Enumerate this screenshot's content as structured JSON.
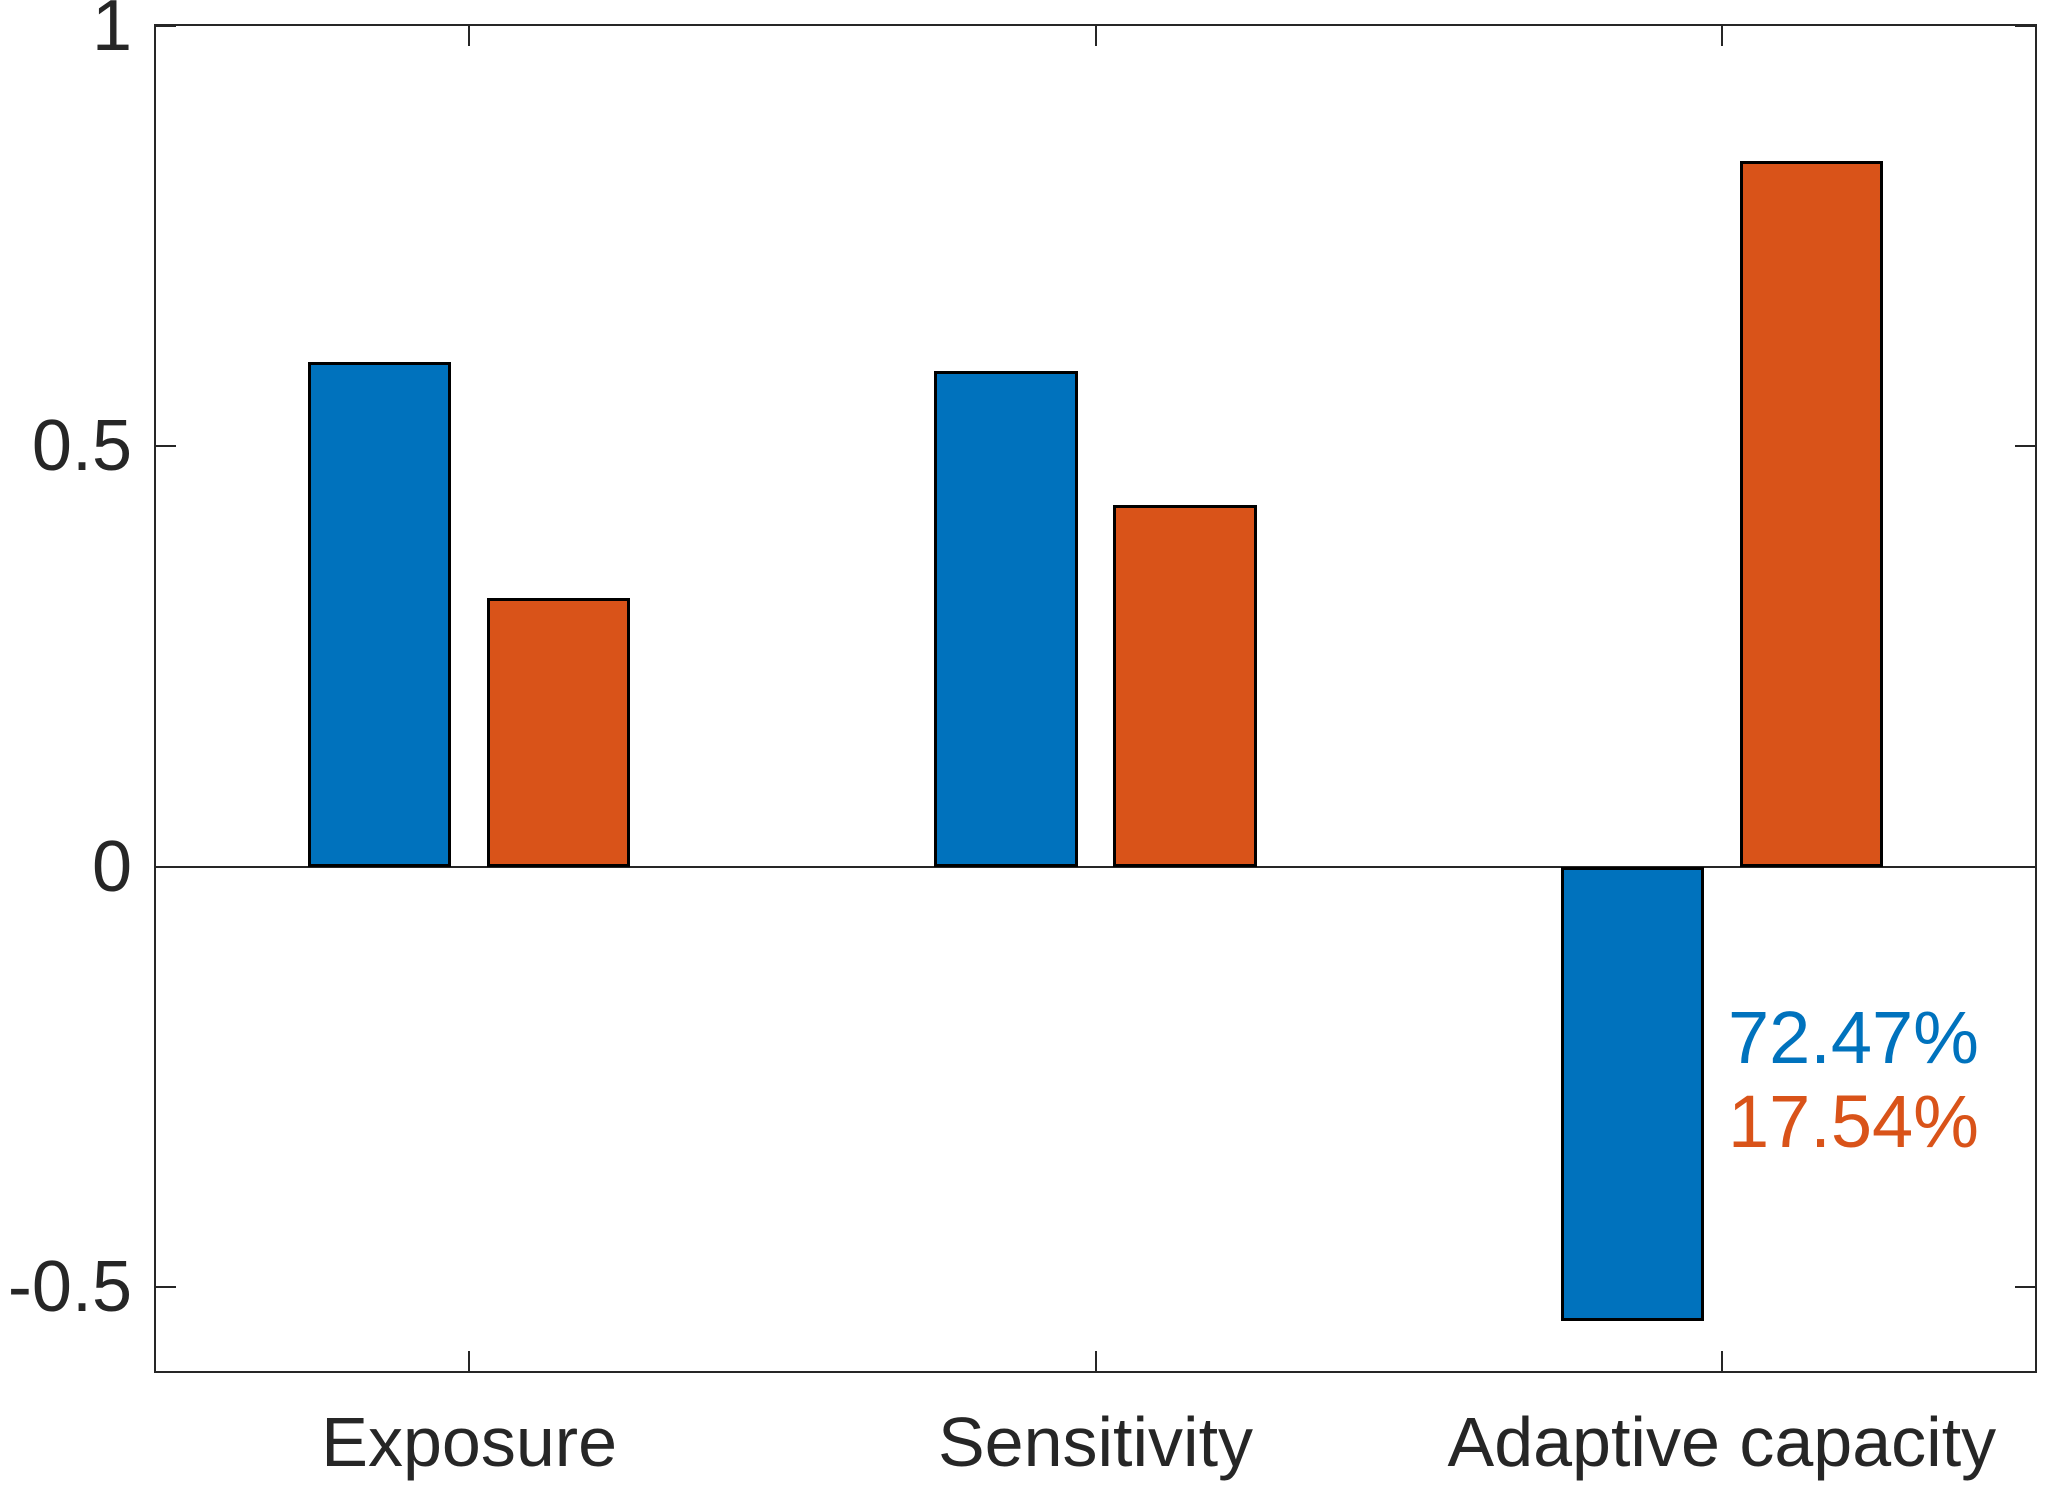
{
  "chart_data": {
    "type": "bar",
    "title": "",
    "xlabel": "",
    "ylabel": "",
    "categories": [
      "Exposure",
      "Sensitivity",
      "Adaptive capacity"
    ],
    "series": [
      {
        "name": "blue-series",
        "color": "#0072BD",
        "values": [
          0.6,
          0.59,
          -0.54
        ]
      },
      {
        "name": "orange-series",
        "color": "#D95319",
        "values": [
          0.32,
          0.43,
          0.84
        ]
      }
    ],
    "ylim": [
      -0.6,
      1
    ],
    "yticks": [
      {
        "value": 1,
        "label": "1"
      },
      {
        "value": 0.5,
        "label": "0.5"
      },
      {
        "value": 0,
        "label": "0"
      },
      {
        "value": -0.5,
        "label": "-0.5"
      }
    ],
    "baseline": 0,
    "bar_width_units": 0.2286,
    "bar_offset_units": 0.1429,
    "grid": false,
    "legend_position": "none",
    "annotations": [
      {
        "text": "72.47%",
        "color": "#0072BD"
      },
      {
        "text": "17.54%",
        "color": "#D95319"
      }
    ],
    "axis_color": "#262626",
    "bar_edge_color": "#000000"
  }
}
